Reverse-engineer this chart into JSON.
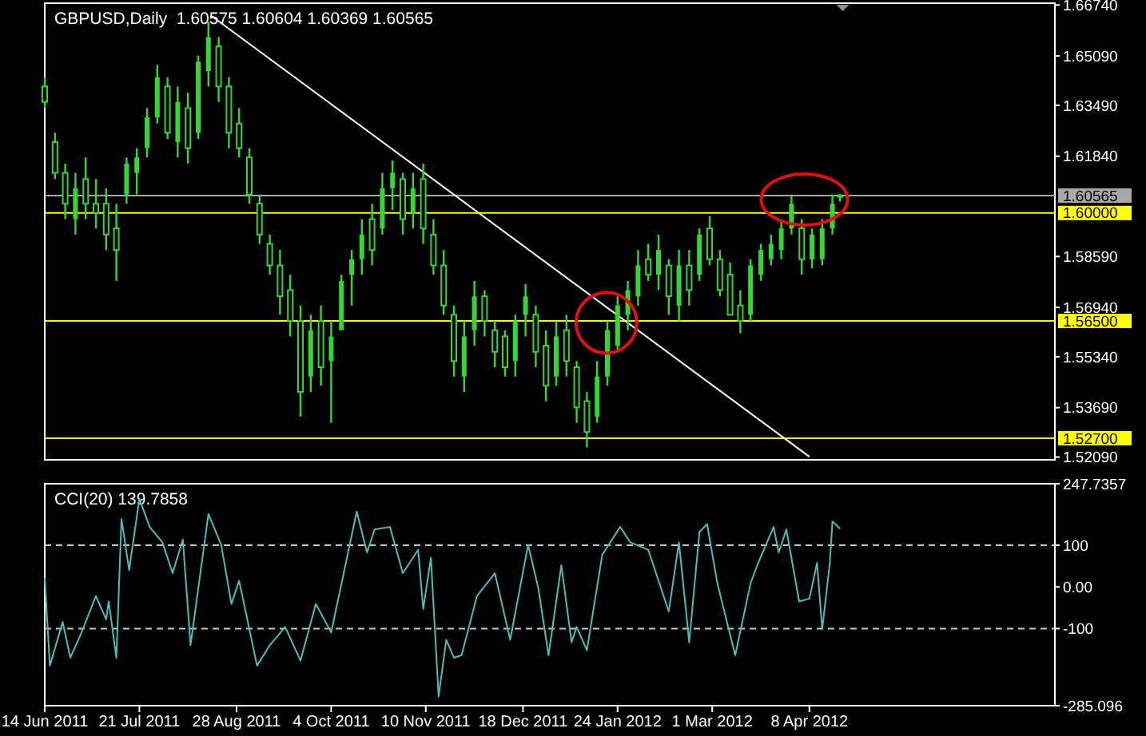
{
  "chart_data": [
    {
      "type": "candlestick",
      "title": "GBPUSD,Daily  1.60575 1.60604 1.60369 1.60565",
      "color": "#33d633",
      "tick_labels": "y",
      "grid": false,
      "xlim": [
        "2011-06-14",
        "2012-07-13"
      ],
      "ylim": [
        1.52,
        1.668
      ],
      "yticks": [
        {
          "value": 1.6674,
          "label": "1.66740"
        },
        {
          "value": 1.6509,
          "label": "1.65090"
        },
        {
          "value": 1.6349,
          "label": "1.63490"
        },
        {
          "value": 1.6184,
          "label": "1.61840"
        },
        {
          "value": 1.5859,
          "label": "1.58590"
        },
        {
          "value": 1.5694,
          "label": "1.56940"
        },
        {
          "value": 1.5534,
          "label": "1.55340"
        },
        {
          "value": 1.5369,
          "label": "1.53690"
        },
        {
          "value": 1.5209,
          "label": "1.52090"
        }
      ],
      "x": [
        "2011-06-14",
        "2011-06-18",
        "2011-06-22",
        "2011-06-26",
        "2011-06-30",
        "2011-07-04",
        "2011-07-08",
        "2011-07-12",
        "2011-07-16",
        "2011-07-20",
        "2011-07-24",
        "2011-07-28",
        "2011-08-01",
        "2011-08-05",
        "2011-08-09",
        "2011-08-13",
        "2011-08-17",
        "2011-08-21",
        "2011-08-25",
        "2011-08-29",
        "2011-09-02",
        "2011-09-06",
        "2011-09-10",
        "2011-09-14",
        "2011-09-18",
        "2011-09-22",
        "2011-09-26",
        "2011-09-30",
        "2011-10-04",
        "2011-10-08",
        "2011-10-12",
        "2011-10-16",
        "2011-10-20",
        "2011-10-24",
        "2011-10-28",
        "2011-11-01",
        "2011-11-05",
        "2011-11-09",
        "2011-11-13",
        "2011-11-17",
        "2011-11-21",
        "2011-11-25",
        "2011-11-29",
        "2011-12-03",
        "2011-12-07",
        "2011-12-11",
        "2011-12-15",
        "2011-12-19",
        "2011-12-23",
        "2011-12-27",
        "2011-12-31",
        "2012-01-04",
        "2012-01-08",
        "2012-01-12",
        "2012-01-16",
        "2012-01-20",
        "2012-01-24",
        "2012-01-28",
        "2012-02-01",
        "2012-02-05",
        "2012-02-09",
        "2012-02-13",
        "2012-02-17",
        "2012-02-21",
        "2012-02-25",
        "2012-02-29",
        "2012-03-04",
        "2012-03-08",
        "2012-03-12",
        "2012-03-16",
        "2012-03-20",
        "2012-03-24",
        "2012-03-28",
        "2012-04-01",
        "2012-04-05",
        "2012-04-09",
        "2012-04-13",
        "2012-04-17",
        "2012-04-20"
      ],
      "ohlc": [
        [
          1.641,
          1.644,
          1.634,
          1.636
        ],
        [
          1.623,
          1.626,
          1.611,
          1.613
        ],
        [
          1.613,
          1.616,
          1.598,
          1.603
        ],
        [
          1.598,
          1.613,
          1.593,
          1.608
        ],
        [
          1.611,
          1.618,
          1.598,
          1.603
        ],
        [
          1.603,
          1.611,
          1.595,
          1.6
        ],
        [
          1.603,
          1.608,
          1.588,
          1.593
        ],
        [
          1.595,
          1.603,
          1.578,
          1.588
        ],
        [
          1.606,
          1.618,
          1.603,
          1.616
        ],
        [
          1.613,
          1.621,
          1.606,
          1.618
        ],
        [
          1.621,
          1.634,
          1.618,
          1.631
        ],
        [
          1.631,
          1.648,
          1.629,
          1.644
        ],
        [
          1.641,
          1.644,
          1.624,
          1.626
        ],
        [
          1.623,
          1.641,
          1.618,
          1.636
        ],
        [
          1.634,
          1.639,
          1.616,
          1.621
        ],
        [
          1.626,
          1.651,
          1.624,
          1.649
        ],
        [
          1.646,
          1.662,
          1.641,
          1.657
        ],
        [
          1.654,
          1.657,
          1.636,
          1.641
        ],
        [
          1.641,
          1.644,
          1.621,
          1.626
        ],
        [
          1.629,
          1.634,
          1.618,
          1.621
        ],
        [
          1.618,
          1.621,
          1.603,
          1.606
        ],
        [
          1.603,
          1.606,
          1.59,
          1.593
        ],
        [
          1.59,
          1.593,
          1.58,
          1.583
        ],
        [
          1.583,
          1.588,
          1.567,
          1.573
        ],
        [
          1.575,
          1.58,
          1.56,
          1.565
        ],
        [
          1.565,
          1.57,
          1.534,
          1.542
        ],
        [
          1.547,
          1.567,
          1.542,
          1.562
        ],
        [
          1.565,
          1.57,
          1.544,
          1.55
        ],
        [
          1.552,
          1.565,
          1.532,
          1.56
        ],
        [
          1.562,
          1.58,
          1.562,
          1.578
        ],
        [
          1.58,
          1.588,
          1.57,
          1.585
        ],
        [
          1.585,
          1.598,
          1.58,
          1.593
        ],
        [
          1.598,
          1.603,
          1.583,
          1.588
        ],
        [
          1.595,
          1.613,
          1.593,
          1.608
        ],
        [
          1.608,
          1.617,
          1.601,
          1.613
        ],
        [
          1.611,
          1.613,
          1.593,
          1.598
        ],
        [
          1.6,
          1.613,
          1.595,
          1.608
        ],
        [
          1.611,
          1.616,
          1.59,
          1.595
        ],
        [
          1.593,
          1.598,
          1.58,
          1.583
        ],
        [
          1.583,
          1.588,
          1.567,
          1.57
        ],
        [
          1.567,
          1.57,
          1.547,
          1.552
        ],
        [
          1.547,
          1.565,
          1.542,
          1.56
        ],
        [
          1.562,
          1.578,
          1.557,
          1.573
        ],
        [
          1.573,
          1.575,
          1.56,
          1.565
        ],
        [
          1.562,
          1.565,
          1.55,
          1.555
        ],
        [
          1.56,
          1.562,
          1.547,
          1.55
        ],
        [
          1.552,
          1.567,
          1.547,
          1.565
        ],
        [
          1.567,
          1.577,
          1.56,
          1.573
        ],
        [
          1.567,
          1.57,
          1.55,
          1.555
        ],
        [
          1.557,
          1.562,
          1.539,
          1.544
        ],
        [
          1.547,
          1.565,
          1.544,
          1.56
        ],
        [
          1.562,
          1.567,
          1.547,
          1.552
        ],
        [
          1.55,
          1.552,
          1.532,
          1.537
        ],
        [
          1.539,
          1.542,
          1.524,
          1.529
        ],
        [
          1.534,
          1.552,
          1.532,
          1.547
        ],
        [
          1.547,
          1.565,
          1.544,
          1.562
        ],
        [
          1.557,
          1.573,
          1.555,
          1.57
        ],
        [
          1.567,
          1.578,
          1.562,
          1.575
        ],
        [
          1.573,
          1.588,
          1.57,
          1.583
        ],
        [
          1.585,
          1.59,
          1.578,
          1.58
        ],
        [
          1.58,
          1.593,
          1.575,
          1.588
        ],
        [
          1.583,
          1.585,
          1.567,
          1.573
        ],
        [
          1.57,
          1.588,
          1.565,
          1.583
        ],
        [
          1.583,
          1.588,
          1.57,
          1.575
        ],
        [
          1.58,
          1.595,
          1.578,
          1.593
        ],
        [
          1.595,
          1.599,
          1.583,
          1.585
        ],
        [
          1.585,
          1.588,
          1.573,
          1.575
        ],
        [
          1.58,
          1.584,
          1.567,
          1.567
        ],
        [
          1.57,
          1.575,
          1.561,
          1.565
        ],
        [
          1.567,
          1.585,
          1.565,
          1.583
        ],
        [
          1.58,
          1.59,
          1.578,
          1.588
        ],
        [
          1.585,
          1.593,
          1.583,
          1.59
        ],
        [
          1.588,
          1.598,
          1.585,
          1.595
        ],
        [
          1.595,
          1.606,
          1.593,
          1.603
        ],
        [
          1.595,
          1.598,
          1.58,
          1.585
        ],
        [
          1.585,
          1.595,
          1.582,
          1.593
        ],
        [
          1.585,
          1.598,
          1.583,
          1.595
        ],
        [
          1.595,
          1.606,
          1.593,
          1.603
        ],
        [
          1.60575,
          1.60604,
          1.60369,
          1.60565
        ]
      ],
      "series": [
        {
          "type": "line",
          "color": "#ffffff",
          "x": [
            "2011-08-18",
            "2012-04-08"
          ],
          "values": [
            1.664,
            1.521
          ]
        }
      ],
      "ref_lines": [
        {
          "axis": "y",
          "value": 1.60565,
          "label": "1.60565",
          "color": "#a8a8a8"
        },
        {
          "axis": "y",
          "value": 1.6,
          "label": "1.60000",
          "color": "#ffff00"
        },
        {
          "axis": "y",
          "value": 1.565,
          "label": "1.56500",
          "color": "#ffff00"
        },
        {
          "axis": "y",
          "value": 1.527,
          "label": "1.52700",
          "color": "#ffff00"
        }
      ]
    },
    {
      "type": "line",
      "title": "CCI(20) 139.7858",
      "grid": false,
      "xlim": [
        "2011-06-14",
        "2012-07-13"
      ],
      "ylim": [
        -285.096,
        247.7357
      ],
      "xticks": [
        {
          "value": "2011-06-14",
          "label": "14 Jun 2011"
        },
        {
          "value": "2011-07-21",
          "label": "21 Jul 2011"
        },
        {
          "value": "2011-08-28",
          "label": "28 Aug 2011"
        },
        {
          "value": "2011-10-04",
          "label": "4 Oct 2011"
        },
        {
          "value": "2011-11-10",
          "label": "10 Nov 2011"
        },
        {
          "value": "2011-12-18",
          "label": "18 Dec 2011"
        },
        {
          "value": "2012-01-24",
          "label": "24 Jan 2012"
        },
        {
          "value": "2012-03-01",
          "label": "1 Mar 2012"
        },
        {
          "value": "2012-04-08",
          "label": "8 Apr 2012"
        }
      ],
      "yticks": [
        247.7357,
        100,
        {
          "value": 0,
          "label": "0.00"
        },
        -100,
        -285.096
      ],
      "ref_lines": [
        {
          "axis": "y",
          "value": 100,
          "color": "#c8c8c8",
          "line_style": "dashed"
        },
        {
          "axis": "y",
          "value": -100,
          "color": "#c8c8c8",
          "line_style": "dashed"
        }
      ],
      "series": [
        {
          "color": "#4cbcbc",
          "x": [
            "2011-06-14",
            "2011-06-16",
            "2011-06-21",
            "2011-06-24",
            "2011-06-28",
            "2011-07-04",
            "2011-07-08",
            "2011-07-09",
            "2011-07-12",
            "2011-07-14",
            "2011-07-17",
            "2011-07-21",
            "2011-07-25",
            "2011-07-30",
            "2011-08-03",
            "2011-08-07",
            "2011-08-10",
            "2011-08-17",
            "2011-08-22",
            "2011-08-26",
            "2011-08-29",
            "2011-09-05",
            "2011-09-10",
            "2011-09-16",
            "2011-09-22",
            "2011-09-28",
            "2011-10-04",
            "2011-10-14",
            "2011-10-18",
            "2011-10-21",
            "2011-10-27",
            "2011-11-01",
            "2011-11-07",
            "2011-11-09",
            "2011-11-12",
            "2011-11-15",
            "2011-11-18",
            "2011-11-21",
            "2011-11-24",
            "2011-11-30",
            "2011-12-07",
            "2011-12-13",
            "2011-12-20",
            "2011-12-24",
            "2011-12-28",
            "2012-01-02",
            "2012-01-06",
            "2012-01-08",
            "2012-01-12",
            "2012-01-18",
            "2012-01-25",
            "2012-01-29",
            "2012-02-05",
            "2012-02-13",
            "2012-02-17",
            "2012-02-21",
            "2012-02-25",
            "2012-02-28",
            "2012-03-03",
            "2012-03-07",
            "2012-03-10",
            "2012-03-16",
            "2012-03-19",
            "2012-03-25",
            "2012-03-27",
            "2012-03-30",
            "2012-04-04",
            "2012-04-08",
            "2012-04-11",
            "2012-04-13",
            "2012-04-16",
            "2012-04-17",
            "2012-04-20"
          ],
          "values": [
            21,
            -189,
            -84,
            -170,
            -115,
            -22,
            -78,
            -35,
            -170,
            163,
            40,
            212,
            144,
            107,
            33,
            114,
            -140,
            175,
            101,
            -41,
            15,
            -189,
            -140,
            -96,
            -177,
            -41,
            -109,
            181,
            83,
            138,
            144,
            33,
            89,
            -53,
            70,
            -263,
            -127,
            -170,
            -164,
            -22,
            33,
            -127,
            101,
            -3,
            -164,
            52,
            -133,
            -96,
            -152,
            77,
            144,
            107,
            89,
            -59,
            107,
            -133,
            132,
            151,
            9,
            -90,
            -164,
            9,
            58,
            144,
            83,
            138,
            -35,
            -28,
            58,
            -102,
            58,
            157,
            139.7858
          ]
        }
      ]
    }
  ]
}
